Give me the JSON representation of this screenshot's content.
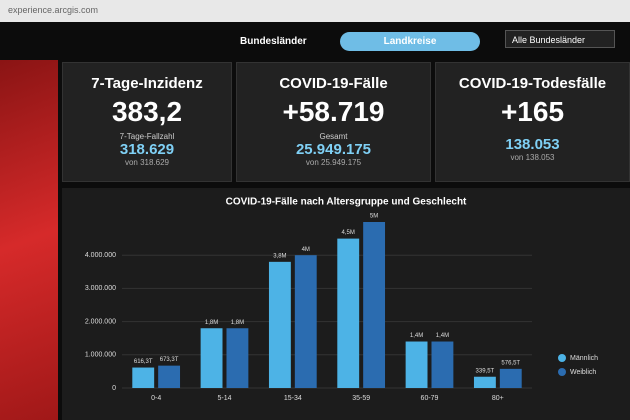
{
  "browser": {
    "url": "experience.arcgis.com"
  },
  "tabs": [
    "Bundesländer",
    "Landkreise"
  ],
  "filter": "Alle Bundesländer",
  "cards": [
    {
      "title": "7-Tage-Inzidenz",
      "value": "383,2",
      "sub_label": "7-Tage-Fallzahl",
      "sub_value": "318.629",
      "note": "von 318.629"
    },
    {
      "title": "COVID-19-Fälle",
      "value": "+58.719",
      "sub_label": "Gesamt",
      "sub_value": "25.949.175",
      "note": "von 25.949.175"
    },
    {
      "title": "COVID-19-Todesfälle",
      "value": "+165",
      "sub_value": "138.053",
      "note": "von 138.053"
    }
  ],
  "chart_data": {
    "type": "bar",
    "title": "COVID-19-Fälle nach Altersgruppe und Geschlecht",
    "categories": [
      "0-4",
      "5-14",
      "15-34",
      "35-59",
      "60-79",
      "80+"
    ],
    "series": [
      {
        "name": "Männlich",
        "color": "#4db3e6",
        "values": [
          616300,
          1800000,
          3800000,
          4500000,
          1400000,
          339500
        ],
        "value_labels": [
          "616,3T",
          "1,8M",
          "3,8M",
          "4,5M",
          "1,4M",
          "339,5T"
        ]
      },
      {
        "name": "Weiblich",
        "color": "#2b6cb0",
        "values": [
          673300,
          1800000,
          4000000,
          5000000,
          1400000,
          576500
        ],
        "value_labels": [
          "673,3T",
          "1,8M",
          "4M",
          "5M",
          "1,4M",
          "576,5T"
        ]
      }
    ],
    "ylim": [
      0,
      5000000
    ],
    "yticks": [
      0,
      {
        "value": 1000000,
        "label": "1.000.000"
      },
      {
        "value": 2000000,
        "label": "2.000.000"
      },
      {
        "value": 3000000,
        "label": "3.000.000"
      },
      {
        "value": 4000000,
        "label": "4.000.000"
      }
    ],
    "grid": true,
    "legend": "bottom-right"
  }
}
